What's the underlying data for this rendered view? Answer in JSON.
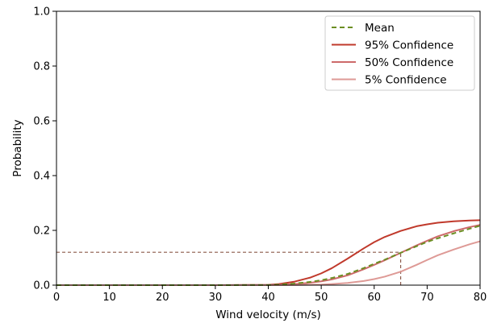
{
  "chart_data": {
    "type": "line",
    "xlabel": "Wind velocity (m/s)",
    "ylabel": "Probability",
    "xlim": [
      0,
      80
    ],
    "ylim": [
      0,
      1.0
    ],
    "xticks": [
      0,
      10,
      20,
      30,
      40,
      50,
      60,
      70,
      80
    ],
    "yticks": [
      0.0,
      0.2,
      0.4,
      0.6,
      0.8,
      1.0
    ],
    "xtick_labels": [
      "0",
      "10",
      "20",
      "30",
      "40",
      "50",
      "60",
      "70",
      "80"
    ],
    "ytick_labels": [
      "0.0",
      "0.2",
      "0.4",
      "0.6",
      "0.8",
      "1.0"
    ],
    "grid": false,
    "legend_position": "top-right",
    "series": [
      {
        "name": "Mean",
        "style": "dashed",
        "color": "#6b8e23",
        "x": [
          0,
          30,
          40,
          42,
          45,
          48,
          50,
          52,
          55,
          58,
          60,
          62,
          65,
          68,
          70,
          72,
          75,
          78,
          80
        ],
        "y": [
          0,
          0,
          0.0005,
          0.002,
          0.006,
          0.012,
          0.018,
          0.026,
          0.041,
          0.062,
          0.078,
          0.093,
          0.118,
          0.142,
          0.158,
          0.171,
          0.189,
          0.206,
          0.217
        ]
      },
      {
        "name": "95% Confidence",
        "style": "solid",
        "color": "#c0392b",
        "x": [
          0,
          30,
          40,
          42,
          45,
          48,
          50,
          52,
          55,
          58,
          60,
          62,
          65,
          68,
          70,
          72,
          75,
          78,
          80
        ],
        "y": [
          0,
          0,
          0.001,
          0.004,
          0.013,
          0.028,
          0.043,
          0.062,
          0.097,
          0.134,
          0.157,
          0.176,
          0.198,
          0.215,
          0.222,
          0.228,
          0.233,
          0.236,
          0.237
        ]
      },
      {
        "name": "50% Confidence",
        "style": "solid",
        "color": "#cd6a6a",
        "x": [
          0,
          30,
          40,
          42,
          45,
          48,
          50,
          52,
          55,
          58,
          60,
          62,
          65,
          68,
          70,
          72,
          75,
          78,
          80
        ],
        "y": [
          0,
          0,
          0.0003,
          0.001,
          0.004,
          0.009,
          0.014,
          0.021,
          0.036,
          0.058,
          0.074,
          0.091,
          0.118,
          0.145,
          0.162,
          0.178,
          0.197,
          0.212,
          0.22
        ]
      },
      {
        "name": "5% Confidence",
        "style": "solid",
        "color": "#de9a96",
        "x": [
          0,
          40,
          45,
          50,
          52,
          55,
          58,
          60,
          62,
          65,
          68,
          70,
          72,
          75,
          78,
          80
        ],
        "y": [
          0,
          0,
          0.0005,
          0.002,
          0.004,
          0.008,
          0.015,
          0.022,
          0.031,
          0.049,
          0.074,
          0.092,
          0.109,
          0.13,
          0.149,
          0.16
        ]
      }
    ],
    "reference_lines": [
      {
        "kind": "horizontal",
        "y": 0.12,
        "x_start": 0,
        "x_end": 65,
        "style": "dashed",
        "color": "#8b5a4a"
      },
      {
        "kind": "vertical",
        "x": 65,
        "y_start": 0,
        "y_end": 0.12,
        "style": "dashed",
        "color": "#8b5a4a"
      }
    ]
  }
}
